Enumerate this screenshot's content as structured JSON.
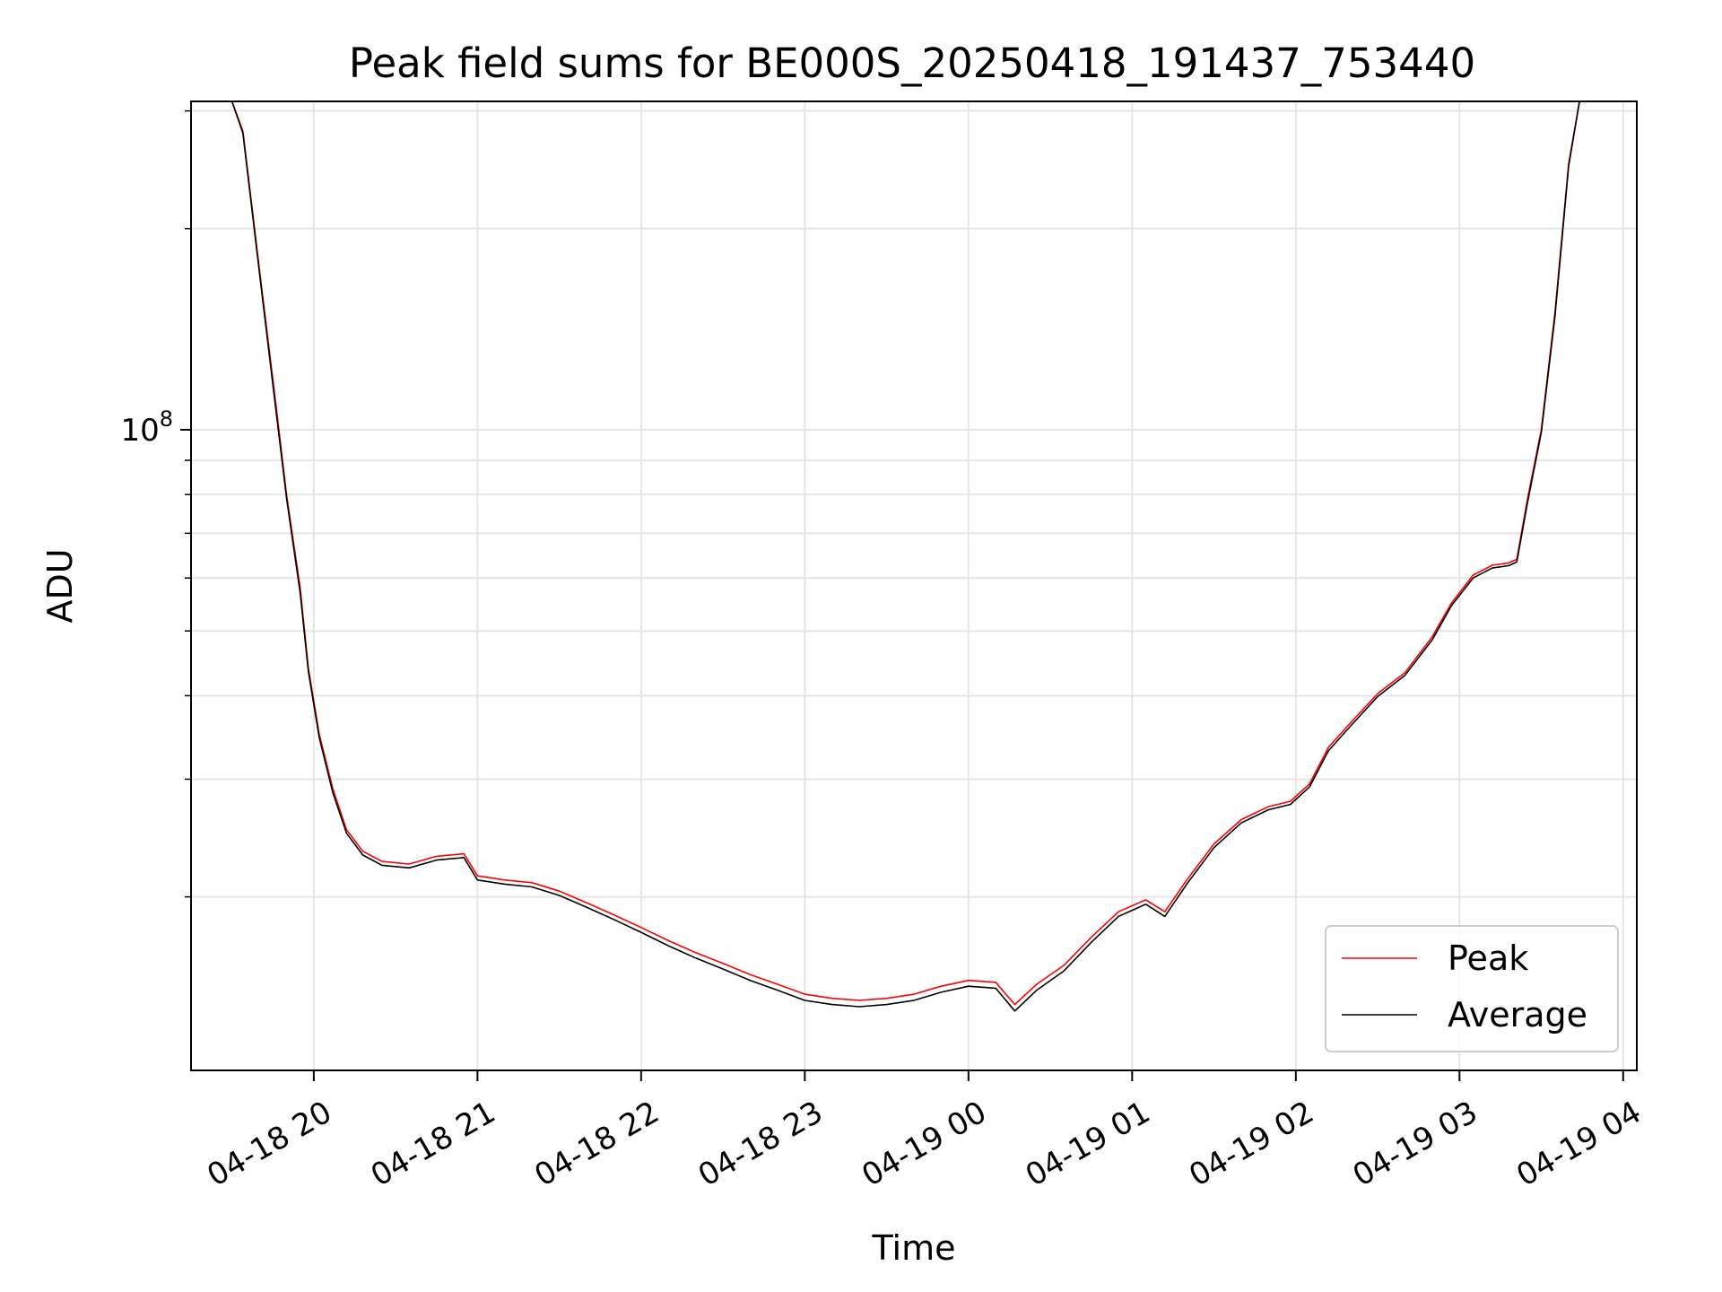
{
  "chart_data": {
    "type": "line",
    "title": "Peak field sums for BE000S_20250418_191437_753440",
    "xlabel": "Time",
    "ylabel": "ADU",
    "y_scale": "log",
    "ylim": [
      11000000,
      310000000
    ],
    "xlim": [
      "2025-04-18 19:15",
      "2025-04-19 04:05"
    ],
    "x_ticks": [
      "04-18 20",
      "04-18 21",
      "04-18 22",
      "04-18 23",
      "04-19 00",
      "04-19 01",
      "04-19 02",
      "04-19 03",
      "04-19 04"
    ],
    "x_tick_times": [
      "2025-04-18 20:00",
      "2025-04-18 21:00",
      "2025-04-18 22:00",
      "2025-04-18 23:00",
      "2025-04-19 00:00",
      "2025-04-19 01:00",
      "2025-04-19 02:00",
      "2025-04-19 03:00",
      "2025-04-19 04:00"
    ],
    "y_major_ticks": [
      {
        "value": 100000000,
        "base": "10",
        "exp": "8"
      }
    ],
    "y_minor_ticks": [
      20000000,
      30000000,
      40000000,
      50000000,
      60000000,
      70000000,
      80000000,
      90000000,
      200000000,
      300000000
    ],
    "grid": true,
    "legend_position": "lower-right",
    "series": [
      {
        "name": "Peak",
        "color": "#ff0000",
        "x": [
          "2025-04-18 19:27",
          "2025-04-18 19:30",
          "2025-04-18 19:34",
          "2025-04-18 19:40",
          "2025-04-18 19:46",
          "2025-04-18 19:50",
          "2025-04-18 19:55",
          "2025-04-18 19:58",
          "2025-04-18 20:02",
          "2025-04-18 20:07",
          "2025-04-18 20:12",
          "2025-04-18 20:18",
          "2025-04-18 20:25",
          "2025-04-18 20:35",
          "2025-04-18 20:45",
          "2025-04-18 20:55",
          "2025-04-18 21:00",
          "2025-04-18 21:10",
          "2025-04-18 21:20",
          "2025-04-18 21:30",
          "2025-04-18 21:40",
          "2025-04-18 21:50",
          "2025-04-18 22:00",
          "2025-04-18 22:10",
          "2025-04-18 22:20",
          "2025-04-18 22:30",
          "2025-04-18 22:40",
          "2025-04-18 22:50",
          "2025-04-18 23:00",
          "2025-04-18 23:10",
          "2025-04-18 23:20",
          "2025-04-18 23:30",
          "2025-04-18 23:40",
          "2025-04-18 23:50",
          "2025-04-19 00:00",
          "2025-04-19 00:10",
          "2025-04-19 00:17",
          "2025-04-19 00:25",
          "2025-04-19 00:35",
          "2025-04-19 00:45",
          "2025-04-19 00:55",
          "2025-04-19 01:05",
          "2025-04-19 01:12",
          "2025-04-19 01:20",
          "2025-04-19 01:30",
          "2025-04-19 01:40",
          "2025-04-19 01:50",
          "2025-04-19 01:58",
          "2025-04-19 02:05",
          "2025-04-19 02:12",
          "2025-04-19 02:20",
          "2025-04-19 02:30",
          "2025-04-19 02:40",
          "2025-04-19 02:50",
          "2025-04-19 02:57",
          "2025-04-19 03:05",
          "2025-04-19 03:12",
          "2025-04-19 03:18",
          "2025-04-19 03:21",
          "2025-04-19 03:25",
          "2025-04-19 03:30",
          "2025-04-19 03:35",
          "2025-04-19 03:40",
          "2025-04-19 03:44",
          "2025-04-19 03:48"
        ],
        "values": [
          310000000,
          310000000,
          280000000,
          175000000,
          110000000,
          80000000,
          58000000,
          44000000,
          35000000,
          29000000,
          25200000,
          23400000,
          22600000,
          22400000,
          23000000,
          23200000,
          21500000,
          21200000,
          21000000,
          20400000,
          19600000,
          18800000,
          18000000,
          17200000,
          16500000,
          15900000,
          15300000,
          14800000,
          14300000,
          14100000,
          14000000,
          14100000,
          14300000,
          14700000,
          15000000,
          14900000,
          13800000,
          14800000,
          15800000,
          17400000,
          19000000,
          19800000,
          19000000,
          21200000,
          24000000,
          26100000,
          27300000,
          27800000,
          29500000,
          33500000,
          36400000,
          40300000,
          43300000,
          49000000,
          55000000,
          60600000,
          62700000,
          63200000,
          64000000,
          79000000,
          100000000,
          150000000,
          250000000,
          310000000,
          310000000
        ]
      },
      {
        "name": "Average",
        "color": "#000000",
        "x": [
          "2025-04-18 19:27",
          "2025-04-18 19:30",
          "2025-04-18 19:34",
          "2025-04-18 19:40",
          "2025-04-18 19:46",
          "2025-04-18 19:50",
          "2025-04-18 19:55",
          "2025-04-18 19:58",
          "2025-04-18 20:02",
          "2025-04-18 20:07",
          "2025-04-18 20:12",
          "2025-04-18 20:18",
          "2025-04-18 20:25",
          "2025-04-18 20:35",
          "2025-04-18 20:45",
          "2025-04-18 20:55",
          "2025-04-18 21:00",
          "2025-04-18 21:10",
          "2025-04-18 21:20",
          "2025-04-18 21:30",
          "2025-04-18 21:40",
          "2025-04-18 21:50",
          "2025-04-18 22:00",
          "2025-04-18 22:10",
          "2025-04-18 22:20",
          "2025-04-18 22:30",
          "2025-04-18 22:40",
          "2025-04-18 22:50",
          "2025-04-18 23:00",
          "2025-04-18 23:10",
          "2025-04-18 23:20",
          "2025-04-18 23:30",
          "2025-04-18 23:40",
          "2025-04-18 23:50",
          "2025-04-19 00:00",
          "2025-04-19 00:10",
          "2025-04-19 00:17",
          "2025-04-19 00:25",
          "2025-04-19 00:35",
          "2025-04-19 00:45",
          "2025-04-19 00:55",
          "2025-04-19 01:05",
          "2025-04-19 01:12",
          "2025-04-19 01:20",
          "2025-04-19 01:30",
          "2025-04-19 01:40",
          "2025-04-19 01:50",
          "2025-04-19 01:58",
          "2025-04-19 02:05",
          "2025-04-19 02:12",
          "2025-04-19 02:20",
          "2025-04-19 02:30",
          "2025-04-19 02:40",
          "2025-04-19 02:50",
          "2025-04-19 02:57",
          "2025-04-19 03:05",
          "2025-04-19 03:12",
          "2025-04-19 03:18",
          "2025-04-19 03:21",
          "2025-04-19 03:25",
          "2025-04-19 03:30",
          "2025-04-19 03:35",
          "2025-04-19 03:40",
          "2025-04-19 03:44",
          "2025-04-19 03:48"
        ],
        "values": [
          310000000,
          310000000,
          278000000,
          173000000,
          108000000,
          79000000,
          57000000,
          43500000,
          34600000,
          28600000,
          24900000,
          23100000,
          22300000,
          22100000,
          22700000,
          22900000,
          21200000,
          20900000,
          20700000,
          20100000,
          19300000,
          18500000,
          17700000,
          16900000,
          16200000,
          15600000,
          15000000,
          14500000,
          14000000,
          13800000,
          13700000,
          13800000,
          14000000,
          14400000,
          14700000,
          14600000,
          13500000,
          14500000,
          15500000,
          17100000,
          18700000,
          19500000,
          18700000,
          20900000,
          23700000,
          25800000,
          27000000,
          27500000,
          29200000,
          33100000,
          36000000,
          39900000,
          42900000,
          48500000,
          54500000,
          60000000,
          62100000,
          62600000,
          63400000,
          78000000,
          99000000,
          148000000,
          248000000,
          310000000,
          310000000
        ]
      }
    ]
  }
}
